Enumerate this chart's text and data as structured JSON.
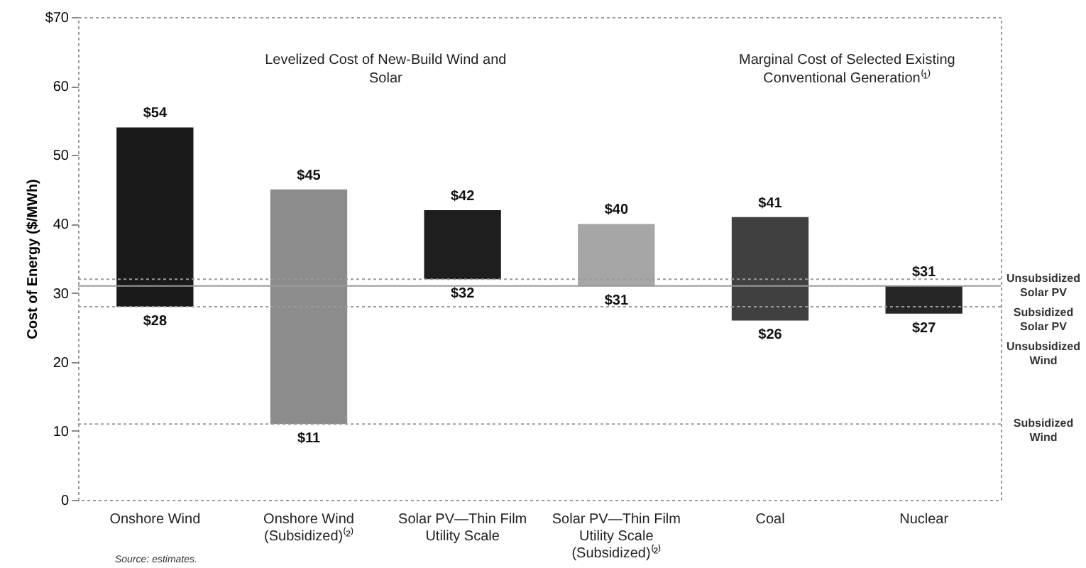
{
  "chart_data": {
    "type": "bar",
    "categories": [
      "Onshore Wind",
      "Onshore Wind (Subsidized)⁽²⁾",
      "Solar PV—Thin Film Utility Scale",
      "Solar PV—Thin Film Utility Scale (Subsidized)⁽²⁾",
      "Coal",
      "Nuclear"
    ],
    "base": [
      28,
      11,
      32,
      31,
      26,
      27
    ],
    "values": [
      26,
      34,
      10,
      9,
      15,
      4
    ],
    "colors": [
      "#1a1a1a",
      "#8c8c8c",
      "#1e1e1e",
      "#a6a6a6",
      "#404040",
      "#262626"
    ],
    "ylabel": "Cost of Energy ($/MWh)",
    "ylim": [
      0,
      70
    ],
    "yticks": [
      0,
      10,
      20,
      30,
      40,
      50,
      60,
      {
        "value": 70,
        "label": "$70"
      }
    ],
    "ref_lines": [
      {
        "axis": "y",
        "value": 32,
        "label": "Unsubsidized Solar PV",
        "color": "#9a9a9a",
        "line_style": "dotted"
      },
      {
        "axis": "y",
        "value": 31,
        "label": "Subsidized Solar PV",
        "color": "#9a9a9a",
        "line_style": "solid"
      },
      {
        "axis": "y",
        "value": 28,
        "label": "Unsubsidized Wind",
        "color": "#9a9a9a",
        "line_style": "dotted"
      },
      {
        "axis": "y",
        "value": 11,
        "label": "Subsidized Wind",
        "color": "#9a9a9a",
        "line_style": "dotted"
      }
    ],
    "annotations": [
      "Levelized Cost of New-Build Wind and Solar",
      "Marginal Cost of Selected Existing Conventional Generation⁽¹⁾",
      "Source: estimates.",
      {
        "text": "$54",
        "x": "Onshore Wind",
        "y": 54
      },
      {
        "text": "$28",
        "x": "Onshore Wind",
        "y": 28
      },
      {
        "text": "$45",
        "x": "Onshore Wind (Subsidized)⁽²⁾",
        "y": 45
      },
      {
        "text": "$11",
        "x": "Onshore Wind (Subsidized)⁽²⁾",
        "y": 11
      },
      {
        "text": "$42",
        "x": "Solar PV—Thin Film Utility Scale",
        "y": 42
      },
      {
        "text": "$32",
        "x": "Solar PV—Thin Film Utility Scale",
        "y": 32
      },
      {
        "text": "$40",
        "x": "Solar PV—Thin Film Utility Scale (Subsidized)⁽²⁾",
        "y": 40
      },
      {
        "text": "$31",
        "x": "Solar PV—Thin Film Utility Scale (Subsidized)⁽²⁾",
        "y": 31
      },
      {
        "text": "$41",
        "x": "Coal",
        "y": 41
      },
      {
        "text": "$26",
        "x": "Coal",
        "y": 26
      },
      {
        "text": "$31",
        "x": "Nuclear",
        "y": 31
      },
      {
        "text": "$27",
        "x": "Nuclear",
        "y": 27
      }
    ]
  }
}
